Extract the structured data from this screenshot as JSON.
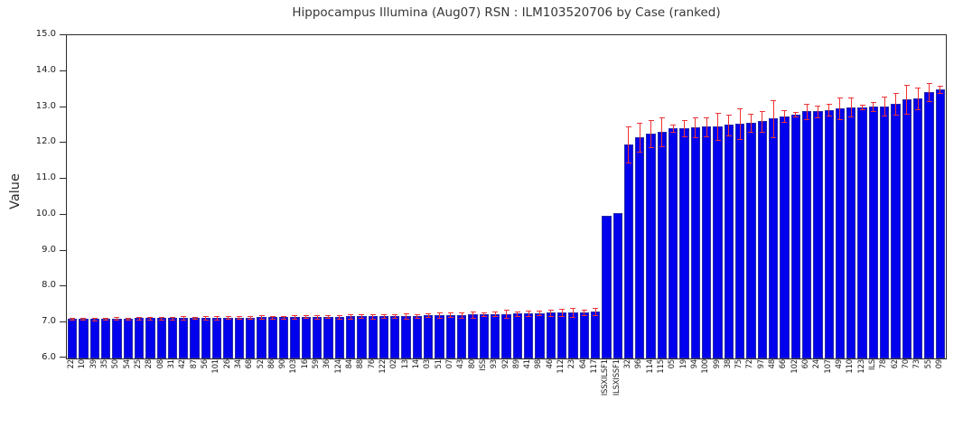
{
  "title": "Hippocampus Illumina (Aug07) RSN : ILM103520706 by Case (ranked)",
  "chart_data": {
    "type": "bar",
    "title": "Hippocampus Illumina (Aug07) RSN : ILM103520706 by Case (ranked)",
    "xlabel": "",
    "ylabel": "Value",
    "ylim": [
      6.0,
      15.0
    ],
    "ytick_step": 1.0,
    "ytick_labels": [
      "15.0",
      "14.0",
      "13.0",
      "12.0",
      "11.0",
      "10.0",
      "9.0",
      "8.0",
      "7.0",
      "6.0"
    ],
    "grid": false,
    "legend": "none",
    "bar_color": "#0101ee",
    "error_color": "#ee3333",
    "categories": [
      "22",
      "10",
      "39",
      "35",
      "50",
      "54",
      "25",
      "28",
      "08",
      "31",
      "42",
      "87",
      "56",
      "101",
      "26",
      "34",
      "68",
      "52",
      "86",
      "90",
      "103",
      "16",
      "59",
      "36",
      "124",
      "84",
      "88",
      "76",
      "122",
      "02",
      "13",
      "14",
      "03",
      "51",
      "07",
      "43",
      "80",
      "ISS",
      "93",
      "92",
      "89",
      "41",
      "98",
      "46",
      "112",
      "23",
      "64",
      "117",
      "ISSXILSF1",
      "ILSXISSF1",
      "32",
      "96",
      "114",
      "115",
      "05",
      "19",
      "94",
      "100",
      "99",
      "38",
      "75",
      "72",
      "97",
      "48",
      "66",
      "102",
      "60",
      "24",
      "107",
      "49",
      "110",
      "123",
      "ILS",
      "78",
      "62",
      "70",
      "73",
      "55",
      "09"
    ],
    "values": [
      7.1,
      7.1,
      7.1,
      7.11,
      7.11,
      7.11,
      7.12,
      7.12,
      7.12,
      7.12,
      7.13,
      7.13,
      7.13,
      7.13,
      7.14,
      7.14,
      7.14,
      7.15,
      7.15,
      7.15,
      7.15,
      7.16,
      7.16,
      7.16,
      7.16,
      7.17,
      7.17,
      7.17,
      7.18,
      7.18,
      7.18,
      7.19,
      7.2,
      7.2,
      7.21,
      7.21,
      7.22,
      7.22,
      7.24,
      7.24,
      7.25,
      7.26,
      7.26,
      7.27,
      7.28,
      7.28,
      7.29,
      7.31,
      9.98,
      10.05,
      11.95,
      12.15,
      12.26,
      12.32,
      12.4,
      12.41,
      12.44,
      12.45,
      12.46,
      12.5,
      12.54,
      12.57,
      12.6,
      12.68,
      12.75,
      12.8,
      12.88,
      12.88,
      12.92,
      12.96,
      13.0,
      13.0,
      13.02,
      13.02,
      13.08,
      13.22,
      13.25,
      13.42,
      13.48
    ],
    "errors": [
      0.03,
      0.03,
      0.04,
      0.03,
      0.04,
      0.03,
      0.04,
      0.03,
      0.04,
      0.03,
      0.04,
      0.03,
      0.04,
      0.04,
      0.03,
      0.04,
      0.04,
      0.05,
      0.04,
      0.04,
      0.05,
      0.04,
      0.05,
      0.04,
      0.05,
      0.06,
      0.05,
      0.07,
      0.06,
      0.05,
      0.07,
      0.05,
      0.05,
      0.08,
      0.06,
      0.08,
      0.08,
      0.05,
      0.07,
      0.12,
      0.06,
      0.08,
      0.06,
      0.09,
      0.1,
      0.13,
      0.08,
      0.1,
      0.0,
      0.0,
      0.5,
      0.4,
      0.38,
      0.4,
      0.1,
      0.22,
      0.28,
      0.27,
      0.38,
      0.3,
      0.42,
      0.25,
      0.28,
      0.52,
      0.16,
      0.06,
      0.22,
      0.16,
      0.16,
      0.3,
      0.26,
      0.06,
      0.12,
      0.26,
      0.3,
      0.4,
      0.3,
      0.26,
      0.1
    ]
  }
}
